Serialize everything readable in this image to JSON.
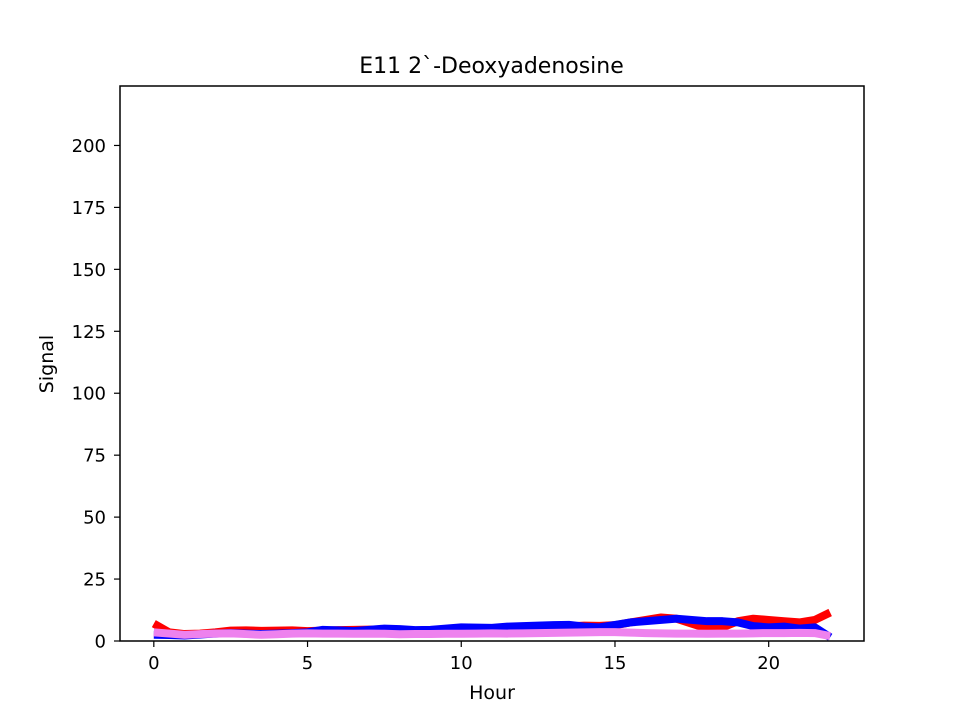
{
  "chart_data": {
    "type": "line",
    "title": "E11 2`-Deoxyadenosine",
    "xlabel": "Hour",
    "ylabel": "Signal",
    "xlim": [
      -1.1,
      23.1
    ],
    "ylim": [
      0,
      224
    ],
    "xticks": [
      0,
      5,
      10,
      15,
      20
    ],
    "yticks": [
      0,
      25,
      50,
      75,
      100,
      125,
      150,
      175,
      200
    ],
    "grid": false,
    "x": [
      0,
      0.5,
      1,
      1.5,
      2,
      2.5,
      3,
      3.5,
      4,
      4.5,
      5,
      5.5,
      6,
      6.5,
      7,
      7.5,
      8,
      8.5,
      9,
      9.5,
      10,
      10.5,
      11,
      11.5,
      12,
      12.5,
      13,
      13.5,
      14,
      14.5,
      15,
      15.5,
      16,
      16.5,
      17,
      17.5,
      18,
      18.5,
      19,
      19.5,
      20,
      20.5,
      21,
      21.5,
      22
    ],
    "series": [
      {
        "color": "#ff0000",
        "line_width": 8,
        "values": [
          7,
          3.5,
          2.8,
          3,
          3.5,
          4.2,
          4.3,
          4.1,
          4.2,
          4.3,
          4.0,
          4.2,
          4.4,
          4.5,
          4.6,
          4.5,
          4.3,
          4.2,
          4.4,
          4.5,
          4.7,
          4.6,
          4.8,
          5.0,
          5.3,
          5.5,
          5.8,
          5.9,
          6.2,
          6.1,
          6.4,
          7.5,
          8.5,
          9.5,
          9.0,
          7.0,
          5.0,
          5.5,
          8.0,
          9.0,
          8.5,
          8.0,
          7.5,
          8.5,
          11.5
        ]
      },
      {
        "color": "#0000ff",
        "line_width": 8,
        "values": [
          2.5,
          2.4,
          2.2,
          2.6,
          3.0,
          3.2,
          3.0,
          2.8,
          3.0,
          3.2,
          3.5,
          4.5,
          4.3,
          4.0,
          4.5,
          5.0,
          4.8,
          4.4,
          4.5,
          5.0,
          5.5,
          5.4,
          5.3,
          5.8,
          6.0,
          6.2,
          6.4,
          6.5,
          5.8,
          5.5,
          6.5,
          7.5,
          8.0,
          8.5,
          9.0,
          8.5,
          8.0,
          8.0,
          7.5,
          6.0,
          5.5,
          5.8,
          5.0,
          5.5,
          1.5
        ]
      },
      {
        "color": "#ee82ee",
        "line_width": 8,
        "values": [
          3.5,
          3.0,
          2.5,
          2.8,
          3.0,
          3.1,
          2.8,
          2.5,
          2.7,
          3.0,
          3.1,
          3.0,
          3.0,
          2.9,
          3.0,
          2.9,
          2.7,
          2.8,
          2.8,
          2.9,
          2.9,
          3.0,
          3.1,
          3.0,
          3.1,
          3.2,
          3.3,
          3.4,
          3.5,
          3.6,
          3.6,
          3.4,
          3.2,
          3.1,
          3.0,
          3.0,
          2.9,
          3.0,
          3.0,
          3.1,
          3.2,
          3.2,
          3.3,
          3.2,
          2.0
        ]
      }
    ]
  }
}
